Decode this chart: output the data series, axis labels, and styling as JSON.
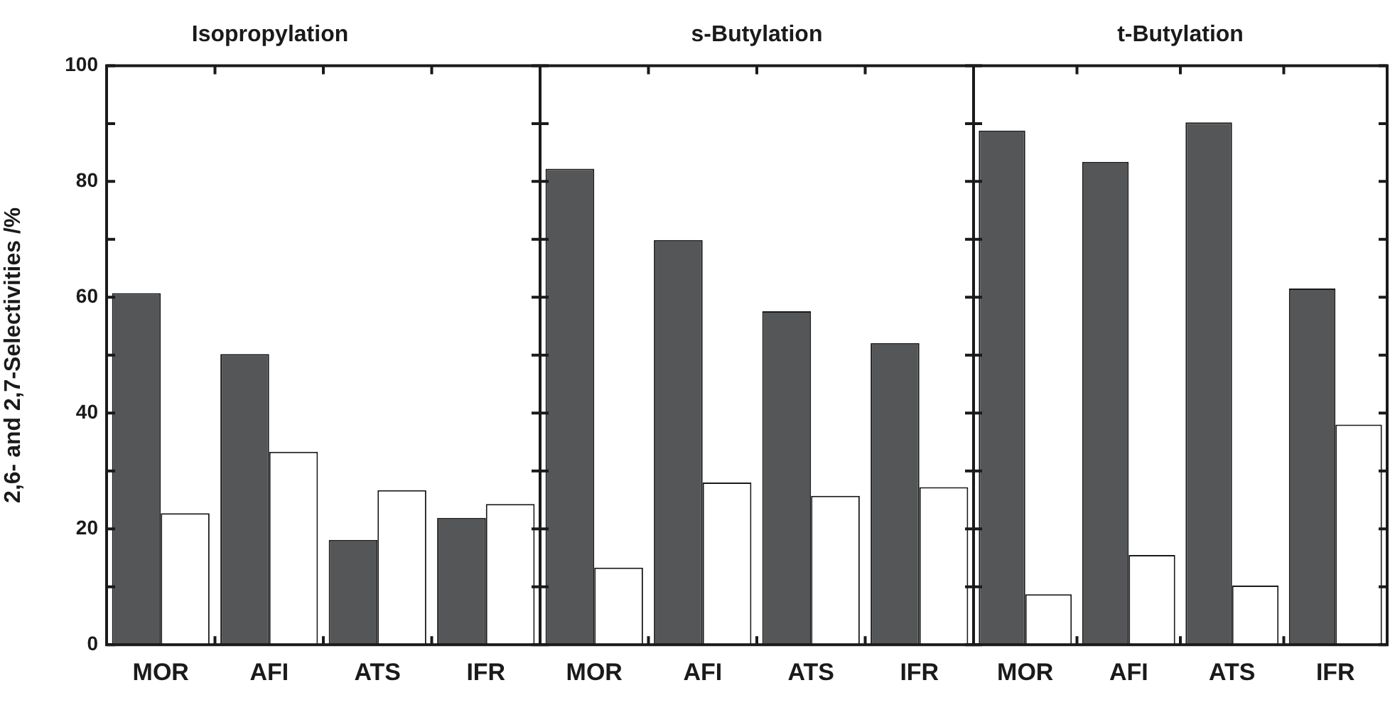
{
  "chart_data": [
    {
      "type": "bar",
      "title": "Isopropylation",
      "ylabel": "2,6- and 2,7-Selectivities /%",
      "categories": [
        "MOR",
        "AFI",
        "ATS",
        "IFR"
      ],
      "series": [
        {
          "color": "#545658",
          "values": [
            60.7,
            50.2,
            18.1,
            21.9
          ]
        },
        {
          "color": "#ffffff",
          "values": [
            22.7,
            33.3,
            26.7,
            24.3
          ]
        }
      ],
      "ylim": [
        0,
        100
      ],
      "yticks": [
        0,
        {
          "value": 10,
          "label": null
        },
        20,
        {
          "value": 30,
          "label": null
        },
        40,
        {
          "value": 50,
          "label": null
        },
        60,
        {
          "value": 70,
          "label": null
        },
        80,
        {
          "value": 90,
          "label": null
        },
        100
      ],
      "grid": false
    },
    {
      "type": "bar",
      "title": "s-Butylation",
      "categories": [
        "MOR",
        "AFI",
        "ATS",
        "IFR"
      ],
      "series": [
        {
          "color": "#545658",
          "values": [
            82.2,
            69.9,
            57.6,
            52.1
          ]
        },
        {
          "color": "#ffffff",
          "values": [
            13.3,
            28.0,
            25.7,
            27.2
          ]
        }
      ],
      "ylim": [
        0,
        100
      ],
      "yticks": [
        0,
        {
          "value": 10,
          "label": null
        },
        20,
        {
          "value": 30,
          "label": null
        },
        40,
        {
          "value": 50,
          "label": null
        },
        60,
        {
          "value": 70,
          "label": null
        },
        80,
        {
          "value": 90,
          "label": null
        },
        100
      ],
      "grid": false,
      "tick_labels": "x"
    },
    {
      "type": "bar",
      "title": "t-Butylation",
      "categories": [
        "MOR",
        "AFI",
        "ATS",
        "IFR"
      ],
      "series": [
        {
          "color": "#545658",
          "values": [
            88.8,
            83.4,
            90.2,
            61.5
          ]
        },
        {
          "color": "#ffffff",
          "values": [
            8.7,
            15.5,
            10.2,
            38.0
          ]
        }
      ],
      "ylim": [
        0,
        100
      ],
      "yticks": [
        0,
        {
          "value": 10,
          "label": null
        },
        20,
        {
          "value": 30,
          "label": null
        },
        40,
        {
          "value": 50,
          "label": null
        },
        60,
        {
          "value": 70,
          "label": null
        },
        80,
        {
          "value": 90,
          "label": null
        },
        100
      ],
      "grid": false,
      "tick_labels": "x"
    }
  ]
}
